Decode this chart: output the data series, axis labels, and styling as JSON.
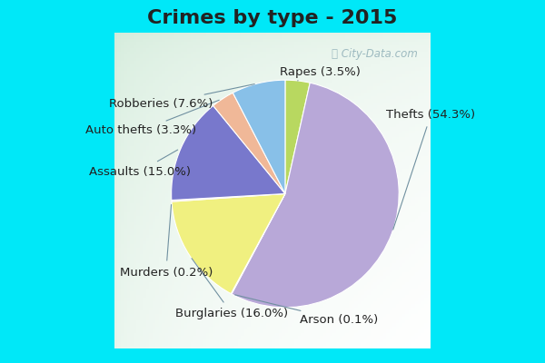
{
  "title": "Crimes by type - 2015",
  "labels": [
    "Thefts",
    "Burglaries",
    "Assaults",
    "Robberies",
    "Rapes",
    "Auto thefts",
    "Murders",
    "Arson"
  ],
  "values": [
    54.3,
    16.0,
    15.0,
    7.6,
    3.5,
    3.3,
    0.2,
    0.1
  ],
  "colors": [
    "#b8a8d8",
    "#f0f080",
    "#7878cc",
    "#88c0e8",
    "#b8d860",
    "#f0b898",
    "#f8c8c8",
    "#f8f8f8"
  ],
  "background_cyan": "#00e8f8",
  "background_inner": "#d0ead8",
  "title_fontsize": 16,
  "label_fontsize": 9.5,
  "figsize": [
    6.0,
    4.0
  ],
  "dpi": 100,
  "pie_order": [
    "Rapes",
    "Thefts",
    "Arson",
    "Burglaries",
    "Murders",
    "Assaults",
    "Auto thefts",
    "Robberies"
  ],
  "label_positions": {
    "Thefts": [
      0.72,
      0.48,
      "left"
    ],
    "Arson": [
      0.42,
      -0.82,
      "center"
    ],
    "Burglaries": [
      0.1,
      -0.78,
      "right"
    ],
    "Murders": [
      -0.38,
      -0.52,
      "right"
    ],
    "Assaults": [
      -0.52,
      0.12,
      "right"
    ],
    "Auto thefts": [
      -0.48,
      0.38,
      "right"
    ],
    "Robberies": [
      -0.38,
      0.55,
      "right"
    ],
    "Rapes": [
      0.3,
      0.75,
      "center"
    ]
  }
}
